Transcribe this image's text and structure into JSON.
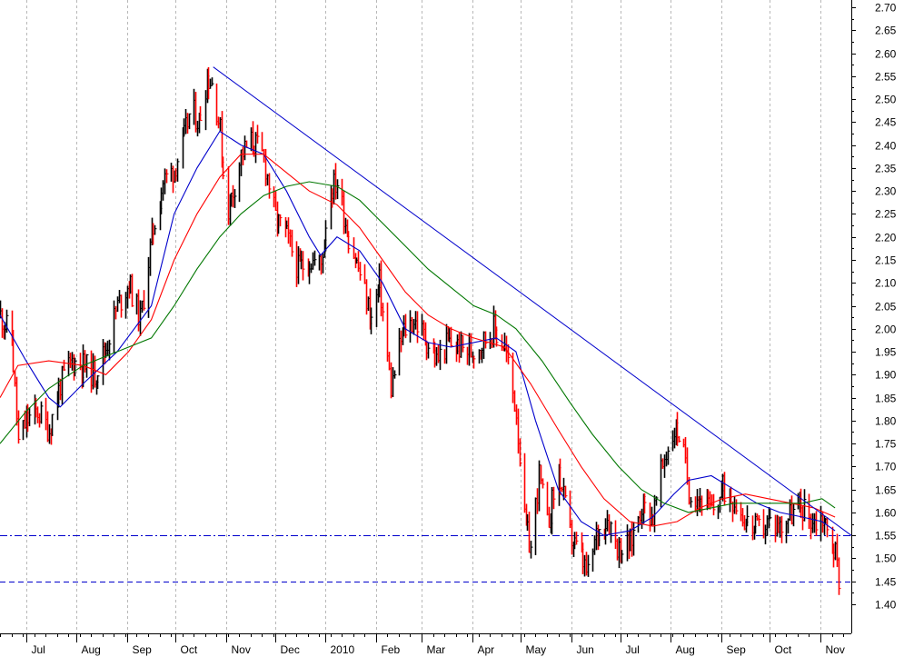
{
  "chart_data": {
    "type": "line",
    "y_axis": {
      "min": 1.35,
      "max": 2.72,
      "ticks": [
        1.4,
        1.45,
        1.5,
        1.55,
        1.6,
        1.65,
        1.7,
        1.75,
        1.8,
        1.85,
        1.9,
        1.95,
        2.0,
        2.05,
        2.1,
        2.15,
        2.2,
        2.25,
        2.3,
        2.35,
        2.4,
        2.45,
        2.5,
        2.55,
        2.6,
        2.65,
        2.7
      ],
      "tick_labels": [
        "1.40",
        "1.45",
        "1.50",
        "1.55",
        "1.60",
        "1.65",
        "1.70",
        "1.75",
        "1.80",
        "1.85",
        "1.90",
        "1.95",
        "2.00",
        "2.05",
        "2.10",
        "2.15",
        "2.20",
        "2.25",
        "2.30",
        "2.35",
        "2.40",
        "2.45",
        "2.50",
        "2.55",
        "2.60",
        "2.65",
        "2.70"
      ],
      "position": "right"
    },
    "x_axis": {
      "start": "2009-06-15",
      "end": "2010-11-20",
      "month_labels": [
        {
          "date": "2009-07-01",
          "label": "Jul"
        },
        {
          "date": "2009-08-01",
          "label": "Aug"
        },
        {
          "date": "2009-09-01",
          "label": "Sep"
        },
        {
          "date": "2009-10-01",
          "label": "Oct"
        },
        {
          "date": "2009-11-01",
          "label": "Nov"
        },
        {
          "date": "2009-12-01",
          "label": "Dec"
        },
        {
          "date": "2010-01-01",
          "label": "2010"
        },
        {
          "date": "2010-02-01",
          "label": "Feb"
        },
        {
          "date": "2010-03-01",
          "label": "Mar"
        },
        {
          "date": "2010-04-01",
          "label": "Apr"
        },
        {
          "date": "2010-05-01",
          "label": "May"
        },
        {
          "date": "2010-06-01",
          "label": "Jun"
        },
        {
          "date": "2010-07-01",
          "label": "Jul"
        },
        {
          "date": "2010-08-01",
          "label": "Aug"
        },
        {
          "date": "2010-09-01",
          "label": "Sep"
        },
        {
          "date": "2010-10-01",
          "label": "Oct"
        },
        {
          "date": "2010-11-01",
          "label": "Nov"
        }
      ]
    },
    "grid": "vertical dotted",
    "price_series": {
      "name": "",
      "style": "high-low bars, red = down, black = up",
      "colors": {
        "up": "#000000",
        "down": "#ff0000"
      },
      "points": [
        [
          "2009-06-15",
          2.03
        ],
        [
          "2009-06-22",
          1.98
        ],
        [
          "2009-06-26",
          1.75
        ],
        [
          "2009-07-01",
          1.8
        ],
        [
          "2009-07-08",
          1.82
        ],
        [
          "2009-07-15",
          1.78
        ],
        [
          "2009-07-22",
          1.88
        ],
        [
          "2009-07-29",
          1.93
        ],
        [
          "2009-08-05",
          1.92
        ],
        [
          "2009-08-12",
          1.9
        ],
        [
          "2009-08-19",
          1.96
        ],
        [
          "2009-08-26",
          2.05
        ],
        [
          "2009-09-02",
          2.1
        ],
        [
          "2009-09-09",
          2.02
        ],
        [
          "2009-09-16",
          2.2
        ],
        [
          "2009-09-23",
          2.32
        ],
        [
          "2009-09-30",
          2.35
        ],
        [
          "2009-10-05",
          2.4
        ],
        [
          "2009-10-10",
          2.48
        ],
        [
          "2009-10-15",
          2.45
        ],
        [
          "2009-10-20",
          2.55
        ],
        [
          "2009-10-24",
          2.53
        ],
        [
          "2009-10-28",
          2.43
        ],
        [
          "2009-11-01",
          2.25
        ],
        [
          "2009-11-05",
          2.3
        ],
        [
          "2009-11-10",
          2.38
        ],
        [
          "2009-11-17",
          2.41
        ],
        [
          "2009-11-24",
          2.37
        ],
        [
          "2009-12-01",
          2.24
        ],
        [
          "2009-12-08",
          2.2
        ],
        [
          "2009-12-15",
          2.13
        ],
        [
          "2009-12-22",
          2.15
        ],
        [
          "2009-12-29",
          2.14
        ],
        [
          "2010-01-03",
          2.3
        ],
        [
          "2010-01-08",
          2.32
        ],
        [
          "2010-01-15",
          2.2
        ],
        [
          "2010-01-22",
          2.12
        ],
        [
          "2010-01-29",
          2.02
        ],
        [
          "2010-02-03",
          2.1
        ],
        [
          "2010-02-10",
          1.87
        ],
        [
          "2010-02-17",
          1.99
        ],
        [
          "2010-02-24",
          2.02
        ],
        [
          "2010-03-03",
          1.98
        ],
        [
          "2010-03-10",
          1.93
        ],
        [
          "2010-03-17",
          1.97
        ],
        [
          "2010-03-24",
          1.96
        ],
        [
          "2010-03-31",
          1.95
        ],
        [
          "2010-04-07",
          1.97
        ],
        [
          "2010-04-14",
          2.0
        ],
        [
          "2010-04-21",
          1.96
        ],
        [
          "2010-04-28",
          1.82
        ],
        [
          "2010-05-03",
          1.58
        ],
        [
          "2010-05-07",
          1.52
        ],
        [
          "2010-05-12",
          1.68
        ],
        [
          "2010-05-17",
          1.57
        ],
        [
          "2010-05-24",
          1.69
        ],
        [
          "2010-05-31",
          1.55
        ],
        [
          "2010-06-07",
          1.5
        ],
        [
          "2010-06-11",
          1.46
        ],
        [
          "2010-06-16",
          1.55
        ],
        [
          "2010-06-23",
          1.59
        ],
        [
          "2010-06-30",
          1.52
        ],
        [
          "2010-07-07",
          1.53
        ],
        [
          "2010-07-14",
          1.62
        ],
        [
          "2010-07-21",
          1.59
        ],
        [
          "2010-07-28",
          1.72
        ],
        [
          "2010-08-03",
          1.78
        ],
        [
          "2010-08-07",
          1.77
        ],
        [
          "2010-08-12",
          1.65
        ],
        [
          "2010-08-19",
          1.63
        ],
        [
          "2010-08-26",
          1.6
        ],
        [
          "2010-09-02",
          1.65
        ],
        [
          "2010-09-09",
          1.63
        ],
        [
          "2010-09-16",
          1.58
        ],
        [
          "2010-09-23",
          1.56
        ],
        [
          "2010-09-30",
          1.58
        ],
        [
          "2010-10-07",
          1.57
        ],
        [
          "2010-10-14",
          1.6
        ],
        [
          "2010-10-21",
          1.61
        ],
        [
          "2010-10-28",
          1.58
        ],
        [
          "2010-11-02",
          1.59
        ],
        [
          "2010-11-06",
          1.55
        ],
        [
          "2010-11-10",
          1.51
        ],
        [
          "2010-11-12",
          1.46
        ]
      ]
    },
    "moving_averages": [
      {
        "name": "",
        "color": "#0000cc",
        "points": [
          [
            "2009-06-15",
            2.03
          ],
          [
            "2009-07-01",
            1.93
          ],
          [
            "2009-07-15",
            1.85
          ],
          [
            "2009-07-22",
            1.83
          ],
          [
            "2009-08-05",
            1.88
          ],
          [
            "2009-08-26",
            1.95
          ],
          [
            "2009-09-16",
            2.05
          ],
          [
            "2009-09-30",
            2.25
          ],
          [
            "2009-10-14",
            2.35
          ],
          [
            "2009-10-28",
            2.43
          ],
          [
            "2009-11-10",
            2.4
          ],
          [
            "2009-11-24",
            2.38
          ],
          [
            "2009-12-08",
            2.3
          ],
          [
            "2009-12-22",
            2.2
          ],
          [
            "2009-12-29",
            2.16
          ],
          [
            "2010-01-08",
            2.2
          ],
          [
            "2010-01-22",
            2.17
          ],
          [
            "2010-02-05",
            2.1
          ],
          [
            "2010-02-19",
            2.0
          ],
          [
            "2010-03-05",
            1.97
          ],
          [
            "2010-03-19",
            1.96
          ],
          [
            "2010-04-02",
            1.97
          ],
          [
            "2010-04-16",
            1.98
          ],
          [
            "2010-04-28",
            1.95
          ],
          [
            "2010-05-10",
            1.8
          ],
          [
            "2010-05-24",
            1.65
          ],
          [
            "2010-06-07",
            1.58
          ],
          [
            "2010-06-21",
            1.55
          ],
          [
            "2010-07-07",
            1.56
          ],
          [
            "2010-07-21",
            1.59
          ],
          [
            "2010-08-03",
            1.64
          ],
          [
            "2010-08-12",
            1.67
          ],
          [
            "2010-08-26",
            1.68
          ],
          [
            "2010-09-09",
            1.65
          ],
          [
            "2010-09-23",
            1.62
          ],
          [
            "2010-10-07",
            1.6
          ],
          [
            "2010-10-21",
            1.59
          ],
          [
            "2010-11-02",
            1.58
          ],
          [
            "2010-11-10",
            1.56
          ]
        ]
      },
      {
        "name": "",
        "color": "#ff0000",
        "points": [
          [
            "2009-06-15",
            1.85
          ],
          [
            "2009-06-26",
            1.92
          ],
          [
            "2009-07-15",
            1.93
          ],
          [
            "2009-08-05",
            1.92
          ],
          [
            "2009-08-19",
            1.9
          ],
          [
            "2009-09-02",
            1.95
          ],
          [
            "2009-09-16",
            2.02
          ],
          [
            "2009-09-30",
            2.15
          ],
          [
            "2009-10-14",
            2.25
          ],
          [
            "2009-10-28",
            2.33
          ],
          [
            "2009-11-10",
            2.38
          ],
          [
            "2009-11-24",
            2.38
          ],
          [
            "2009-12-08",
            2.34
          ],
          [
            "2009-12-22",
            2.3
          ],
          [
            "2010-01-08",
            2.27
          ],
          [
            "2010-01-22",
            2.22
          ],
          [
            "2010-02-05",
            2.15
          ],
          [
            "2010-02-19",
            2.08
          ],
          [
            "2010-03-05",
            2.03
          ],
          [
            "2010-03-19",
            2.0
          ],
          [
            "2010-04-02",
            1.98
          ],
          [
            "2010-04-21",
            1.96
          ],
          [
            "2010-05-07",
            1.88
          ],
          [
            "2010-05-24",
            1.78
          ],
          [
            "2010-06-07",
            1.7
          ],
          [
            "2010-06-21",
            1.63
          ],
          [
            "2010-07-07",
            1.58
          ],
          [
            "2010-07-21",
            1.57
          ],
          [
            "2010-08-05",
            1.58
          ],
          [
            "2010-08-19",
            1.61
          ],
          [
            "2010-09-02",
            1.63
          ],
          [
            "2010-09-16",
            1.64
          ],
          [
            "2010-09-30",
            1.63
          ],
          [
            "2010-10-14",
            1.62
          ],
          [
            "2010-10-28",
            1.61
          ],
          [
            "2010-11-10",
            1.59
          ]
        ]
      },
      {
        "name": "",
        "color": "#007700",
        "points": [
          [
            "2009-06-15",
            1.75
          ],
          [
            "2009-07-01",
            1.82
          ],
          [
            "2009-07-15",
            1.87
          ],
          [
            "2009-08-05",
            1.92
          ],
          [
            "2009-08-26",
            1.95
          ],
          [
            "2009-09-16",
            1.98
          ],
          [
            "2009-09-30",
            2.05
          ],
          [
            "2009-10-14",
            2.13
          ],
          [
            "2009-10-28",
            2.2
          ],
          [
            "2009-11-10",
            2.25
          ],
          [
            "2009-11-24",
            2.29
          ],
          [
            "2009-12-08",
            2.31
          ],
          [
            "2009-12-22",
            2.32
          ],
          [
            "2010-01-08",
            2.31
          ],
          [
            "2010-01-22",
            2.28
          ],
          [
            "2010-02-05",
            2.23
          ],
          [
            "2010-02-19",
            2.18
          ],
          [
            "2010-03-05",
            2.13
          ],
          [
            "2010-03-19",
            2.09
          ],
          [
            "2010-04-02",
            2.05
          ],
          [
            "2010-04-16",
            2.03
          ],
          [
            "2010-04-28",
            2.0
          ],
          [
            "2010-05-14",
            1.93
          ],
          [
            "2010-05-31",
            1.84
          ],
          [
            "2010-06-14",
            1.77
          ],
          [
            "2010-06-30",
            1.7
          ],
          [
            "2010-07-14",
            1.65
          ],
          [
            "2010-07-28",
            1.62
          ],
          [
            "2010-08-12",
            1.6
          ],
          [
            "2010-08-26",
            1.61
          ],
          [
            "2010-09-09",
            1.62
          ],
          [
            "2010-09-23",
            1.62
          ],
          [
            "2010-10-07",
            1.62
          ],
          [
            "2010-10-21",
            1.62
          ],
          [
            "2010-11-02",
            1.63
          ],
          [
            "2010-11-10",
            1.61
          ]
        ]
      }
    ],
    "trendline": {
      "color": "#0000cc",
      "from": [
        "2009-10-24",
        2.57
      ],
      "to": [
        "2010-11-20",
        1.55
      ]
    },
    "horizontal_lines": [
      {
        "y": 1.55,
        "color": "#0000cc",
        "style": "dash-dot"
      },
      {
        "y": 1.45,
        "color": "#0000cc",
        "style": "dashed"
      }
    ]
  }
}
